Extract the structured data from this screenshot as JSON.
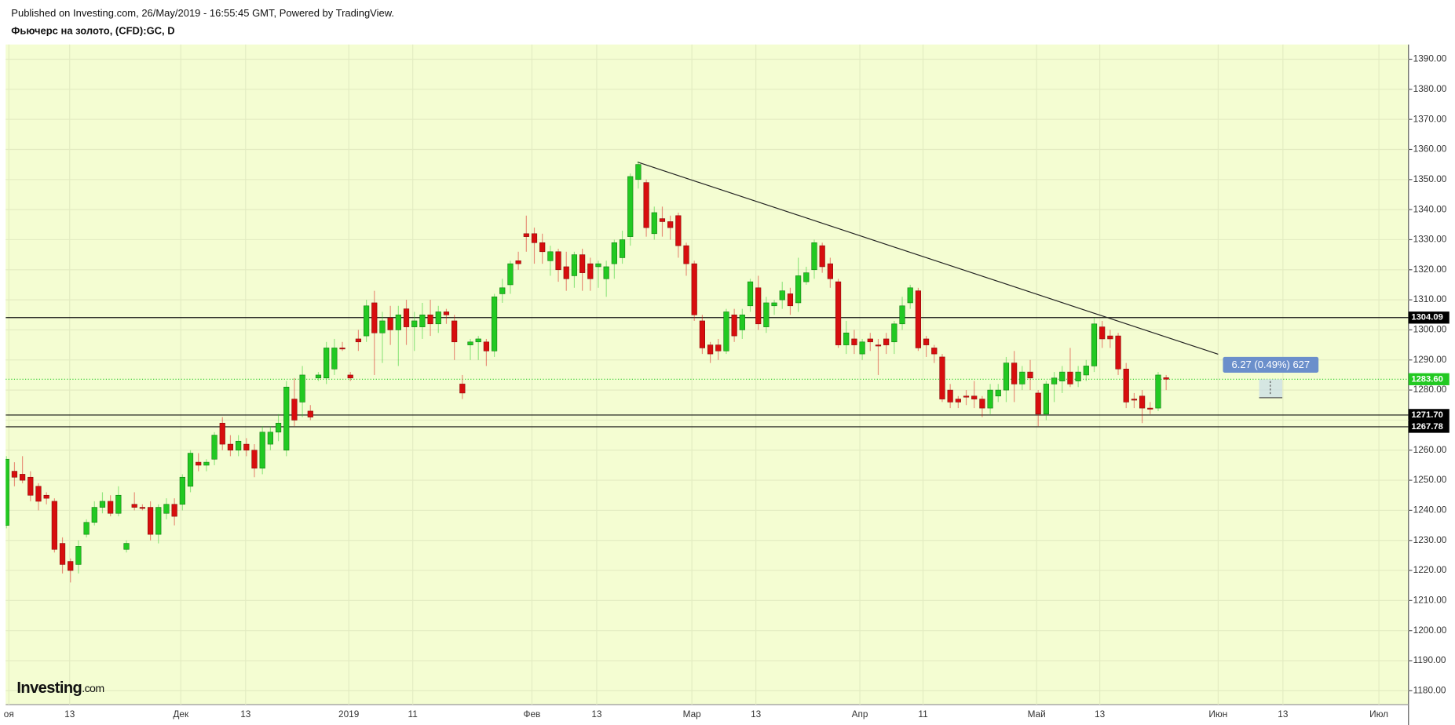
{
  "chart_data": {
    "type": "candlestick",
    "source_note": "Published on Investing.com, 26/May/2019 - 16:55:45 GMT, Powered by TradingView.",
    "title": "Фьючерс на золото, (CFD):GC, D",
    "logo": {
      "name": "Investing",
      "suffix": ".com"
    },
    "up_color": "#22c922",
    "down_color": "#d70e0e",
    "grid": true,
    "open": [
      1235,
      1253,
      1252,
      1251,
      1248,
      1245,
      1243,
      1229,
      1223,
      1222,
      1232,
      1236,
      1241,
      1243,
      1239,
      1227,
      1242,
      1241,
      1241,
      1232,
      1239,
      1242,
      1242,
      1248,
      1256,
      1255,
      1257,
      1269,
      1262,
      1260,
      1262,
      1260,
      1254,
      1262,
      1266,
      1260,
      1277,
      1276,
      1273,
      1284,
      1284,
      1287,
      1294,
      1285,
      1297,
      1298,
      1309,
      1299,
      1304,
      1300,
      1307,
      1301,
      1301,
      1305,
      1302,
      1306,
      1303,
      1282,
      1295,
      1296,
      1296,
      1293,
      1312,
      1315,
      1323,
      1332,
      1332,
      1329,
      1323,
      1326,
      1321,
      1318,
      1325,
      1322,
      1321,
      1317,
      1322,
      1324,
      1331,
      1350,
      1349,
      1332,
      1337,
      1336,
      1338,
      1328,
      1322,
      1303,
      1295,
      1295,
      1293,
      1305,
      1300,
      1308,
      1314,
      1301,
      1308,
      1310,
      1312,
      1309,
      1316,
      1320,
      1328,
      1322,
      1316,
      1295,
      1297,
      1292,
      1297,
      1295,
      1297,
      1296,
      1302,
      1309,
      1313,
      1297,
      1294,
      1291,
      1280,
      1277,
      1278,
      1278,
      1277,
      1274,
      1278,
      1280,
      1289,
      1282,
      1286,
      1279,
      1272,
      1282,
      1283,
      1286,
      1283,
      1285,
      1288,
      1301,
      1298,
      1298,
      1287,
      1277,
      1278,
      1274,
      1274,
      1284.1
    ],
    "high": [
      1258,
      1256,
      1258,
      1253,
      1249,
      1246,
      1244,
      1231,
      1224,
      1230,
      1237,
      1243,
      1246,
      1245,
      1248,
      1230,
      1246,
      1242,
      1243,
      1242,
      1244,
      1244,
      1252,
      1260,
      1259,
      1257,
      1266,
      1271,
      1265,
      1265,
      1264,
      1262,
      1268,
      1268,
      1272,
      1283,
      1284,
      1288,
      1275,
      1286,
      1296,
      1297,
      1296,
      1286,
      1300,
      1310,
      1313,
      1306,
      1308,
      1308,
      1310,
      1306,
      1309,
      1310,
      1308,
      1307,
      1305,
      1285,
      1297,
      1298,
      1297,
      1312,
      1317,
      1323,
      1326,
      1338,
      1334,
      1332,
      1328,
      1327,
      1326,
      1326,
      1327,
      1324,
      1323,
      1323,
      1330,
      1333,
      1352,
      1356,
      1350,
      1341,
      1341,
      1338,
      1339,
      1329,
      1323,
      1305,
      1296,
      1297,
      1307,
      1307,
      1307,
      1317,
      1318,
      1311,
      1310,
      1316,
      1314,
      1324,
      1321,
      1330,
      1329,
      1324,
      1317,
      1303,
      1300,
      1297,
      1299,
      1297,
      1299,
      1303,
      1311,
      1315,
      1314,
      1298,
      1295,
      1292,
      1282,
      1278,
      1280,
      1283,
      1278,
      1282,
      1282,
      1291,
      1293,
      1288,
      1290,
      1280,
      1283,
      1286,
      1288,
      1294,
      1288,
      1290,
      1304,
      1303,
      1300,
      1299,
      1289,
      1279,
      1280,
      1276,
      1286,
      1285
    ],
    "low": [
      1234,
      1248,
      1249,
      1243,
      1240,
      1242,
      1226,
      1219,
      1216,
      1219,
      1231,
      1235,
      1239,
      1238,
      1238,
      1226,
      1240,
      1240,
      1230,
      1229,
      1237,
      1235,
      1240,
      1246,
      1253,
      1253,
      1255,
      1260,
      1258,
      1258,
      1258,
      1251,
      1252,
      1260,
      1263,
      1258,
      1268,
      1271,
      1270,
      1283,
      1282,
      1285,
      1293,
      1283,
      1293,
      1296,
      1285,
      1289,
      1295,
      1288,
      1295,
      1293,
      1297,
      1298,
      1299,
      1302,
      1290,
      1277,
      1290,
      1290,
      1288,
      1291,
      1309,
      1312,
      1320,
      1326,
      1322,
      1322,
      1318,
      1316,
      1313,
      1314,
      1313,
      1313,
      1314,
      1311,
      1317,
      1322,
      1328,
      1347,
      1331,
      1330,
      1331,
      1330,
      1324,
      1318,
      1303,
      1292,
      1289,
      1290,
      1292,
      1296,
      1297,
      1306,
      1300,
      1299,
      1305,
      1307,
      1305,
      1306,
      1315,
      1317,
      1319,
      1314,
      1294,
      1292,
      1292,
      1290,
      1293,
      1285,
      1292,
      1292,
      1300,
      1307,
      1293,
      1291,
      1289,
      1276,
      1274,
      1274,
      1275,
      1274,
      1271,
      1272,
      1276,
      1276,
      1276,
      1280,
      1280,
      1268,
      1270,
      1276,
      1279,
      1281,
      1281,
      1283,
      1286,
      1294,
      1294,
      1285,
      1274,
      1274,
      1269,
      1272,
      1273,
      1280
    ],
    "close": [
      1257,
      1251,
      1250,
      1245,
      1243,
      1244,
      1227,
      1222,
      1220,
      1228,
      1236,
      1241,
      1243,
      1239,
      1245,
      1229,
      1241,
      1241,
      1232,
      1241,
      1242,
      1238,
      1251,
      1259,
      1255,
      1256,
      1265,
      1262,
      1260,
      1263,
      1260,
      1254,
      1266,
      1266,
      1269,
      1281,
      1270,
      1285,
      1271,
      1285,
      1294,
      1294,
      1294,
      1284,
      1296,
      1308,
      1299,
      1303,
      1300,
      1305,
      1301,
      1303,
      1305,
      1302,
      1306,
      1305,
      1296,
      1279,
      1296,
      1297,
      1293,
      1311,
      1314,
      1322,
      1322,
      1331,
      1329,
      1326,
      1326,
      1320,
      1317,
      1325,
      1319,
      1317,
      1322,
      1321,
      1329,
      1330,
      1351,
      1355,
      1334,
      1339,
      1336,
      1334,
      1328,
      1322,
      1305,
      1294,
      1292,
      1293,
      1306,
      1298,
      1305,
      1316,
      1302,
      1309,
      1309,
      1313,
      1308,
      1318,
      1319,
      1329,
      1321,
      1317,
      1295,
      1299,
      1295,
      1296,
      1296,
      1295,
      1295,
      1302,
      1308,
      1314,
      1294,
      1295,
      1292,
      1277,
      1276,
      1276,
      1278,
      1277,
      1274,
      1280,
      1280,
      1289,
      1282,
      1286,
      1284,
      1272,
      1282,
      1284,
      1286,
      1282,
      1286,
      1288,
      1302,
      1297,
      1297,
      1287,
      1276,
      1277,
      1274,
      1274,
      1285,
      1283.6
    ],
    "xlim": [
      -0.1,
      175.3
    ],
    "xticks": [
      {
        "value": 0.3,
        "label": "оя"
      },
      {
        "value": 7.9,
        "label": "13"
      },
      {
        "value": 21.8,
        "label": "Дек"
      },
      {
        "value": 29.9,
        "label": "13"
      },
      {
        "value": 42.8,
        "label": "2019"
      },
      {
        "value": 50.8,
        "label": "11"
      },
      {
        "value": 65.7,
        "label": "Фев"
      },
      {
        "value": 73.8,
        "label": "13"
      },
      {
        "value": 85.7,
        "label": "Мар"
      },
      {
        "value": 93.7,
        "label": "13"
      },
      {
        "value": 106.7,
        "label": "Апр"
      },
      {
        "value": 114.6,
        "label": "11"
      },
      {
        "value": 128.8,
        "label": "Май"
      },
      {
        "value": 136.7,
        "label": "13"
      },
      {
        "value": 151.5,
        "label": "Июн"
      },
      {
        "value": 159.6,
        "label": "13"
      },
      {
        "value": 171.6,
        "label": "Июл"
      }
    ],
    "ylim": [
      1175.4,
      1394.9
    ],
    "yticks": [
      {
        "value": 1180,
        "label": "1180.00"
      },
      {
        "value": 1190,
        "label": "1190.00"
      },
      {
        "value": 1200,
        "label": "1200.00"
      },
      {
        "value": 1210,
        "label": "1210.00"
      },
      {
        "value": 1220,
        "label": "1220.00"
      },
      {
        "value": 1230,
        "label": "1230.00"
      },
      {
        "value": 1240,
        "label": "1240.00"
      },
      {
        "value": 1250,
        "label": "1250.00"
      },
      {
        "value": 1260,
        "label": "1260.00"
      },
      {
        "value": 1270,
        "label": "1270.00"
      },
      {
        "value": 1280,
        "label": "1280.00"
      },
      {
        "value": 1290,
        "label": "1290.00"
      },
      {
        "value": 1300,
        "label": "1300.00"
      },
      {
        "value": 1310,
        "label": "1310.00"
      },
      {
        "value": 1320,
        "label": "1320.00"
      },
      {
        "value": 1330,
        "label": "1330.00"
      },
      {
        "value": 1340,
        "label": "1340.00"
      },
      {
        "value": 1350,
        "label": "1350.00"
      },
      {
        "value": 1360,
        "label": "1360.00"
      },
      {
        "value": 1370,
        "label": "1370.00"
      },
      {
        "value": 1380,
        "label": "1380.00"
      },
      {
        "value": 1390,
        "label": "1390.00"
      }
    ],
    "levels": [
      1304.09,
      {
        "value": 1271.7,
        "label": "1271.70"
      },
      1267.78
    ],
    "last_price": {
      "value": 1283.6,
      "label": "1283.60"
    },
    "trendline": {
      "x": [
        78.9,
        151.5
      ],
      "y": [
        1355.8,
        1291.9
      ]
    },
    "measure_label": "6.27 (0.49%) 627"
  }
}
